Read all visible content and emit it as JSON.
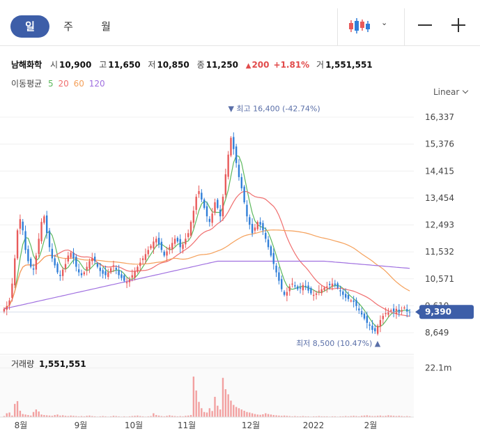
{
  "tabs": [
    {
      "label": "일",
      "active": true
    },
    {
      "label": "주",
      "active": false
    },
    {
      "label": "월",
      "active": false
    }
  ],
  "toolbar": {
    "chart_type_icon": "candlestick-icon",
    "dropdown_icon": "chevron-down-icon",
    "zoom_out_icon": "minus-icon",
    "zoom_in_icon": "plus-icon"
  },
  "quote": {
    "name": "남해화학",
    "open_label": "시",
    "open": "10,900",
    "high_label": "고",
    "high": "11,650",
    "low_label": "저",
    "low": "10,850",
    "close_label": "종",
    "close": "11,250",
    "change_arrow": "▲",
    "change": "200",
    "change_pct": "+1.81%",
    "volume_label": "거",
    "volume": "1,551,551"
  },
  "moving_average": {
    "label": "이동평균",
    "periods": [
      {
        "period": "5",
        "color": "#5cb85c"
      },
      {
        "period": "20",
        "color": "#f06e6e"
      },
      {
        "period": "60",
        "color": "#f5a05a"
      },
      {
        "period": "120",
        "color": "#a070e0"
      }
    ]
  },
  "scale_label": "Linear",
  "colors": {
    "up": "#e85a5a",
    "down": "#2f7ed8",
    "current_price_bg": "#3d5ea8",
    "volume_bar": "#f2a0a0"
  },
  "chart_data": {
    "type": "candlestick",
    "y_ticks": [
      "16,337",
      "15,376",
      "14,415",
      "13,454",
      "12,493",
      "11,532",
      "10,571",
      "9,610",
      "8,649"
    ],
    "ylim": [
      8649,
      16337
    ],
    "x_ticks": [
      "8월",
      "9월",
      "10월",
      "11월",
      "12월",
      "2022",
      "2월"
    ],
    "high_annotation": "▼ 최고 16,400 (-42.74%)",
    "high_value": 16400,
    "low_annotation": "최저 8,500 (10.47%) ▲",
    "low_value": 8500,
    "current_price": "9,390",
    "current_price_value": 9390,
    "volume_label": "거래량",
    "volume_value": "1,551,551",
    "volume_tick": "22.1m",
    "volume_scale_max": 22100000,
    "close_series": [
      9500,
      9600,
      9800,
      10400,
      11300,
      12300,
      12700,
      12300,
      11600,
      11200,
      11000,
      10900,
      11400,
      12000,
      12600,
      12800,
      12200,
      11700,
      11300,
      11050,
      10800,
      10700,
      10900,
      11100,
      11400,
      11500,
      11300,
      11000,
      10800,
      10700,
      10800,
      11000,
      11200,
      11300,
      11200,
      11000,
      10850,
      10750,
      10700,
      10800,
      10950,
      11050,
      10900,
      10700,
      10600,
      10500,
      10450,
      10550,
      10700,
      10850,
      11000,
      11150,
      11300,
      11450,
      11600,
      11750,
      11900,
      12000,
      11800,
      11600,
      11400,
      11550,
      11700,
      11850,
      12000,
      11900,
      11700,
      11800,
      12000,
      12200,
      12600,
      13000,
      13500,
      13700,
      13400,
      13100,
      12800,
      12600,
      12900,
      13300,
      13100,
      12800,
      13500,
      14300,
      15000,
      15600,
      15200,
      14700,
      14200,
      13800,
      13300,
      12800,
      12500,
      12200,
      12400,
      12600,
      12500,
      12300,
      12000,
      11700,
      11400,
      11100,
      10800,
      10500,
      10200,
      10000,
      10100,
      10300,
      10400,
      10300,
      10200,
      10250,
      10350,
      10300,
      10150,
      10050,
      10000,
      10050,
      10150,
      10200,
      10250,
      10300,
      10350,
      10400,
      10350,
      10250,
      10150,
      10000,
      9900,
      9850,
      9800,
      9750,
      9600,
      9450,
      9300,
      9150,
      9000,
      8900,
      8750,
      8700,
      8900,
      9100,
      9250,
      9350,
      9400,
      9450,
      9400,
      9500,
      9350,
      9450,
      9550,
      9400,
      9390
    ],
    "volume_series": [
      0.4,
      1.5,
      1.8,
      0.6,
      5.2,
      6.3,
      2.5,
      1.2,
      1.0,
      0.8,
      0.6,
      2.0,
      3.0,
      2.2,
      1.0,
      0.8,
      0.7,
      0.6,
      0.5,
      0.8,
      1.0,
      0.6,
      0.7,
      0.5,
      0.4,
      0.6,
      0.5,
      0.4,
      0.3,
      0.4,
      0.3,
      0.5,
      0.6,
      0.4,
      0.3,
      0.2,
      0.3,
      0.4,
      0.3,
      0.2,
      0.3,
      0.5,
      0.4,
      0.3,
      0.2,
      0.3,
      0.2,
      0.3,
      0.4,
      0.5,
      0.6,
      0.4,
      0.3,
      0.2,
      0.3,
      0.4,
      1.5,
      0.8,
      0.6,
      0.4,
      0.3,
      0.5,
      0.7,
      0.5,
      0.4,
      0.3,
      0.4,
      0.3,
      0.5,
      0.6,
      0.8,
      16.0,
      10.5,
      6.0,
      3.5,
      2.0,
      1.8,
      3.5,
      2.4,
      8.0,
      4.5,
      3.0,
      15.5,
      11.0,
      9.0,
      6.5,
      4.8,
      4.0,
      3.5,
      3.0,
      2.5,
      2.0,
      1.8,
      1.5,
      1.2,
      1.0,
      0.9,
      1.1,
      1.5,
      1.2,
      1.0,
      0.8,
      0.7,
      0.6,
      0.5,
      0.6,
      0.5,
      0.4,
      0.3,
      0.4,
      0.3,
      0.3,
      0.4,
      0.3,
      0.3,
      0.2,
      0.3,
      0.3,
      0.4,
      0.3,
      0.3,
      0.3,
      0.2,
      0.3,
      0.3,
      0.2,
      0.3,
      0.3,
      0.4,
      0.3,
      0.4,
      0.5,
      0.4,
      0.3,
      0.5,
      0.6,
      0.7,
      0.5,
      0.4,
      0.4,
      0.5,
      0.6,
      0.4,
      0.5,
      0.7,
      0.6,
      0.5,
      0.4,
      0.5,
      0.4,
      0.3,
      0.4,
      0.3
    ]
  }
}
